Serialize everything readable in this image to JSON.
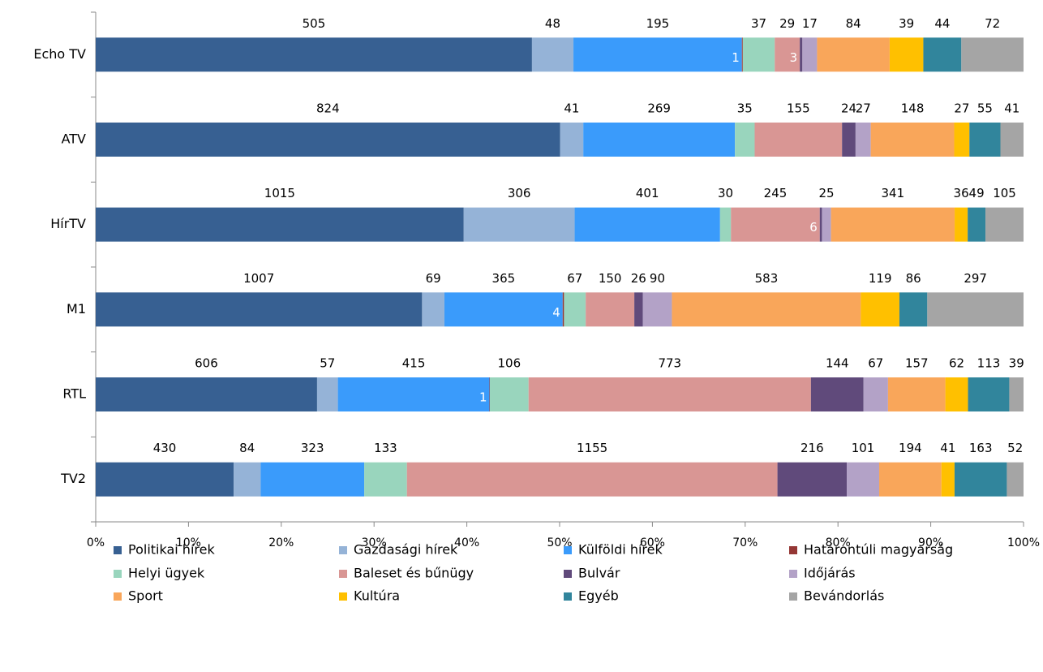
{
  "chart_data": {
    "type": "stacked-percent-bar",
    "categories": [
      "Echo TV",
      "ATV",
      "HírTV",
      "M1",
      "RTL",
      "TV2"
    ],
    "series": [
      {
        "name": "Politikai hírek",
        "color": "#376092",
        "values": [
          505,
          824,
          1015,
          1007,
          606,
          430
        ]
      },
      {
        "name": "Gazdasági hírek",
        "color": "#95b3d7",
        "values": [
          48,
          41,
          306,
          69,
          57,
          84
        ]
      },
      {
        "name": "Külföldi hírek",
        "color": "#3a9bfb",
        "values": [
          195,
          269,
          401,
          365,
          415,
          323
        ]
      },
      {
        "name": "Határontúli magyarság",
        "color": "#953735",
        "values": [
          1,
          null,
          null,
          4,
          1,
          null
        ]
      },
      {
        "name": "Helyi ügyek",
        "color": "#99d5bd",
        "values": [
          37,
          35,
          30,
          67,
          106,
          133
        ]
      },
      {
        "name": "Baleset és bűnügy",
        "color": "#d99694",
        "values": [
          29,
          155,
          245,
          150,
          773,
          1155
        ]
      },
      {
        "name": "Bulvár",
        "color": "#604a7b",
        "values": [
          3,
          24,
          6,
          26,
          144,
          216
        ]
      },
      {
        "name": "Időjárás",
        "color": "#b3a2c7",
        "values": [
          17,
          27,
          25,
          90,
          67,
          101
        ]
      },
      {
        "name": "Sport",
        "color": "#f9a65a",
        "values": [
          84,
          148,
          341,
          583,
          157,
          194
        ]
      },
      {
        "name": "Kultúra",
        "color": "#ffc000",
        "values": [
          39,
          27,
          36,
          119,
          62,
          41
        ]
      },
      {
        "name": "Egyéb",
        "color": "#31859c",
        "values": [
          44,
          55,
          49,
          86,
          113,
          163
        ]
      },
      {
        "name": "Bevándorlás",
        "color": "#a5a5a5",
        "values": [
          72,
          41,
          105,
          297,
          39,
          52
        ]
      }
    ],
    "xlim": [
      0,
      100
    ],
    "xticks": [
      {
        "value": 0,
        "label": "0%"
      },
      {
        "value": 10,
        "label": "10%"
      },
      {
        "value": 20,
        "label": "20%"
      },
      {
        "value": 30,
        "label": "30%"
      },
      {
        "value": 40,
        "label": "40%"
      },
      {
        "value": 50,
        "label": "50%"
      },
      {
        "value": 60,
        "label": "60%"
      },
      {
        "value": 70,
        "label": "70%"
      },
      {
        "value": 80,
        "label": "80%"
      },
      {
        "value": 90,
        "label": "90%"
      },
      {
        "value": 100,
        "label": "100%"
      }
    ],
    "legend": "bottom"
  }
}
